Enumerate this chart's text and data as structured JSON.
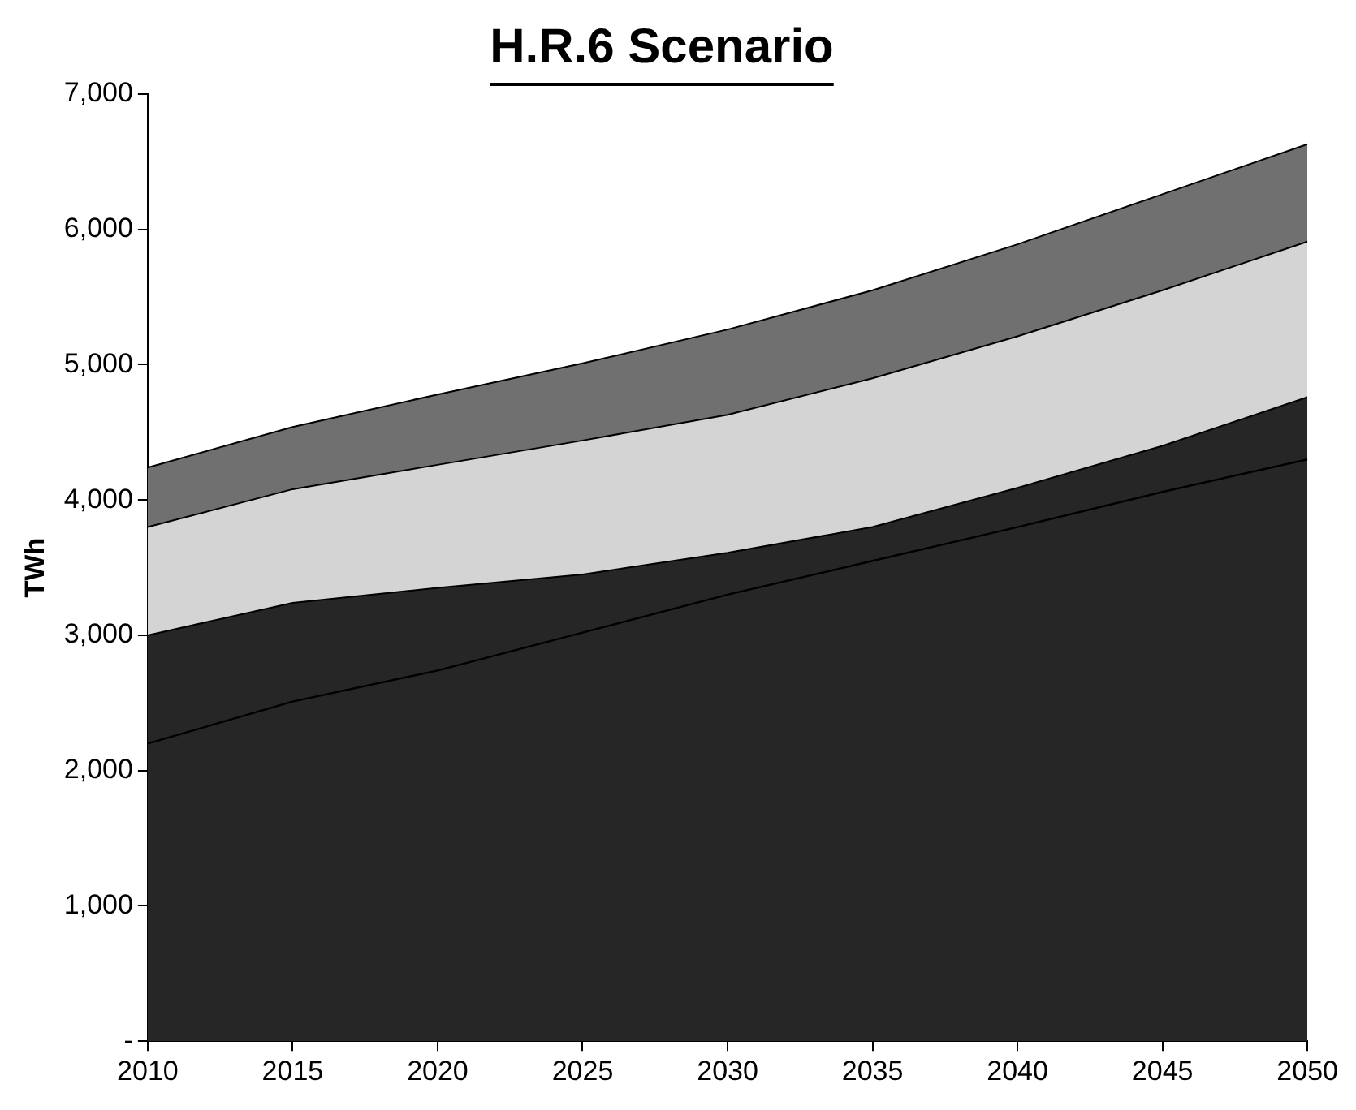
{
  "chart_data": {
    "type": "area",
    "title": "H.R.6 Scenario",
    "ylabel": "TWh",
    "stacked": true,
    "x": [
      2010,
      2015,
      2020,
      2025,
      2030,
      2035,
      2040,
      2045,
      2050
    ],
    "series": [
      {
        "color": "#262626",
        "values": [
          3000,
          3240,
          3350,
          3450,
          3610,
          3800,
          4090,
          4400,
          4760
        ]
      },
      {
        "color": "#d4d4d4",
        "values": [
          800,
          840,
          910,
          990,
          1020,
          1100,
          1120,
          1150,
          1150
        ]
      },
      {
        "color": "#707070",
        "values": [
          440,
          460,
          520,
          570,
          630,
          650,
          680,
          710,
          720
        ]
      },
      {
        "type": "line",
        "color": "#000000",
        "values": [
          2200,
          2510,
          2740,
          3020,
          3300,
          3550,
          3800,
          4060,
          4300
        ]
      }
    ],
    "xlim": [
      2010,
      2050
    ],
    "xticks": [
      2010,
      2015,
      2020,
      2025,
      2030,
      2035,
      2040,
      2045,
      2050
    ],
    "ylim": [
      0,
      7000
    ],
    "yticks": [
      {
        "value": 0,
        "label": "-"
      },
      {
        "value": 1000,
        "label": "1,000"
      },
      {
        "value": 2000,
        "label": "2,000"
      },
      {
        "value": 3000,
        "label": "3,000"
      },
      {
        "value": 4000,
        "label": "4,000"
      },
      {
        "value": 5000,
        "label": "5,000"
      },
      {
        "value": 6000,
        "label": "6,000"
      },
      {
        "value": 7000,
        "label": "7,000"
      }
    ],
    "grid": false,
    "legend": false
  }
}
